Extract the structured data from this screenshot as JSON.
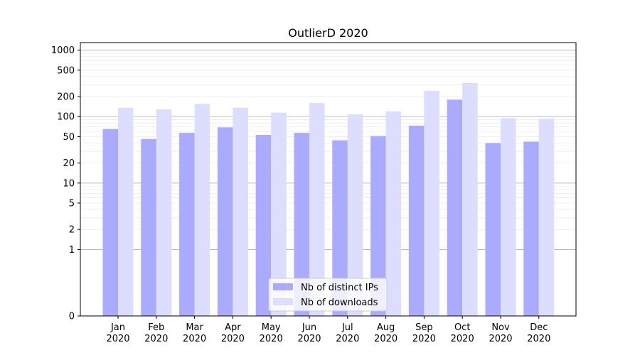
{
  "chart_data": {
    "type": "bar",
    "title": "OutlierD 2020",
    "xlabel": "",
    "ylabel": "",
    "y_scale": "symlog",
    "ylim": [
      0,
      1300
    ],
    "grid": "horizontal, major and minor",
    "legend_position": "bottom-center",
    "categories": [
      [
        "Jan",
        "2020"
      ],
      [
        "Feb",
        "2020"
      ],
      [
        "Mar",
        "2020"
      ],
      [
        "Apr",
        "2020"
      ],
      [
        "May",
        "2020"
      ],
      [
        "Jun",
        "2020"
      ],
      [
        "Jul",
        "2020"
      ],
      [
        "Aug",
        "2020"
      ],
      [
        "Sep",
        "2020"
      ],
      [
        "Oct",
        "2020"
      ],
      [
        "Nov",
        "2020"
      ],
      [
        "Dec",
        "2020"
      ]
    ],
    "y_ticks": [
      0,
      1,
      2,
      5,
      10,
      20,
      50,
      100,
      200,
      500,
      1000
    ],
    "series": [
      {
        "name": "Nb of distinct IPs",
        "color": "#aaaaff",
        "values": [
          65,
          46,
          57,
          69,
          53,
          57,
          44,
          51,
          73,
          180,
          40,
          42
        ]
      },
      {
        "name": "Nb of downloads",
        "color": "#ddddff",
        "values": [
          136,
          128,
          155,
          136,
          115,
          160,
          108,
          120,
          245,
          320,
          95,
          93
        ]
      }
    ]
  }
}
